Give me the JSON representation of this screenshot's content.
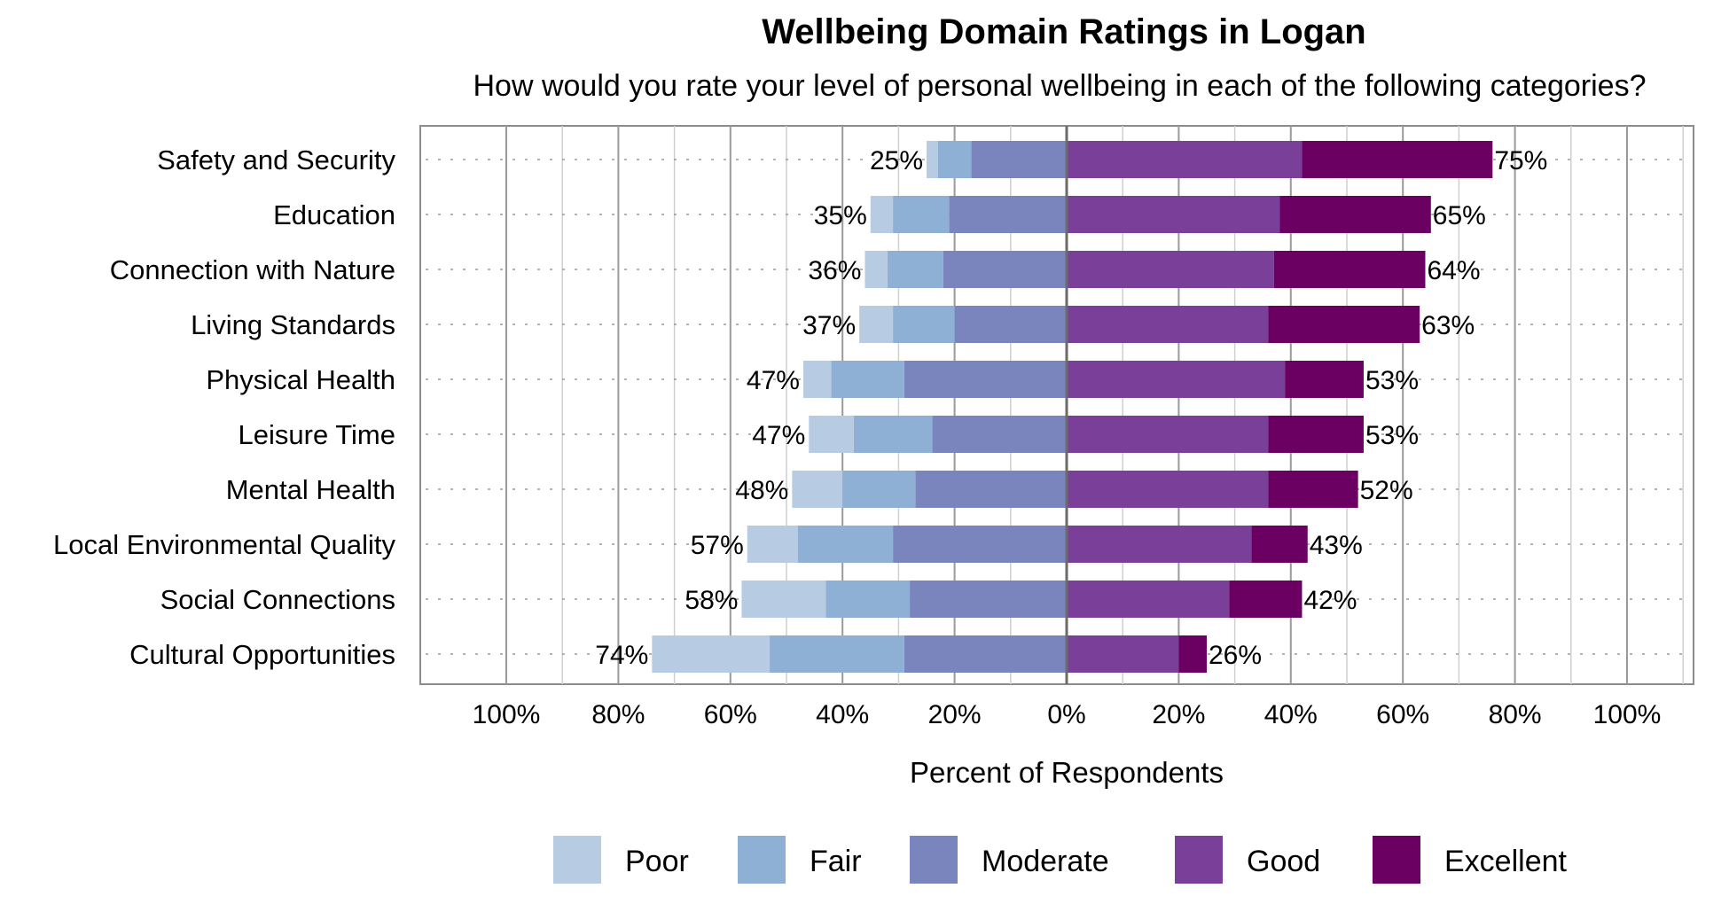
{
  "chart_data": {
    "type": "bar",
    "orientation": "horizontal",
    "stacking": "diverging",
    "title": "Wellbeing Domain Ratings in Logan",
    "subtitle": "How would you rate your level of personal wellbeing in each of the following categories?",
    "xlabel": "Percent of Respondents",
    "xlim": [
      -100,
      100
    ],
    "xticks": [
      "100%",
      "80%",
      "60%",
      "40%",
      "20%",
      "0%",
      "20%",
      "40%",
      "60%",
      "80%",
      "100%"
    ],
    "categories": [
      "Safety and Security",
      "Education",
      "Connection with Nature",
      "Living Standards",
      "Physical Health",
      "Leisure Time",
      "Mental Health",
      "Local Environmental Quality",
      "Social Connections",
      "Cultural Opportunities"
    ],
    "series": [
      {
        "name": "Poor",
        "side": "negative",
        "color": "#b7cbe2",
        "values": [
          2,
          4,
          4,
          6,
          5,
          8,
          9,
          9,
          15,
          21
        ]
      },
      {
        "name": "Fair",
        "side": "negative",
        "color": "#8eb0d4",
        "values": [
          6,
          10,
          10,
          11,
          13,
          14,
          13,
          17,
          15,
          24
        ]
      },
      {
        "name": "Moderate",
        "side": "negative",
        "color": "#7b85bd",
        "values": [
          17,
          21,
          22,
          20,
          29,
          24,
          27,
          31,
          28,
          29
        ]
      },
      {
        "name": "Good",
        "side": "positive",
        "color": "#7a3f98",
        "values": [
          42,
          38,
          37,
          36,
          39,
          36,
          36,
          33,
          29,
          20
        ]
      },
      {
        "name": "Excellent",
        "side": "positive",
        "color": "#6b0062",
        "values": [
          34,
          27,
          27,
          27,
          14,
          17,
          16,
          10,
          13,
          5
        ]
      }
    ],
    "negative_totals": [
      "25%",
      "35%",
      "36%",
      "37%",
      "47%",
      "47%",
      "48%",
      "57%",
      "58%",
      "74%"
    ],
    "positive_totals": [
      "75%",
      "65%",
      "64%",
      "63%",
      "53%",
      "53%",
      "52%",
      "43%",
      "42%",
      "26%"
    ],
    "grid": true,
    "legend_position": "bottom"
  }
}
